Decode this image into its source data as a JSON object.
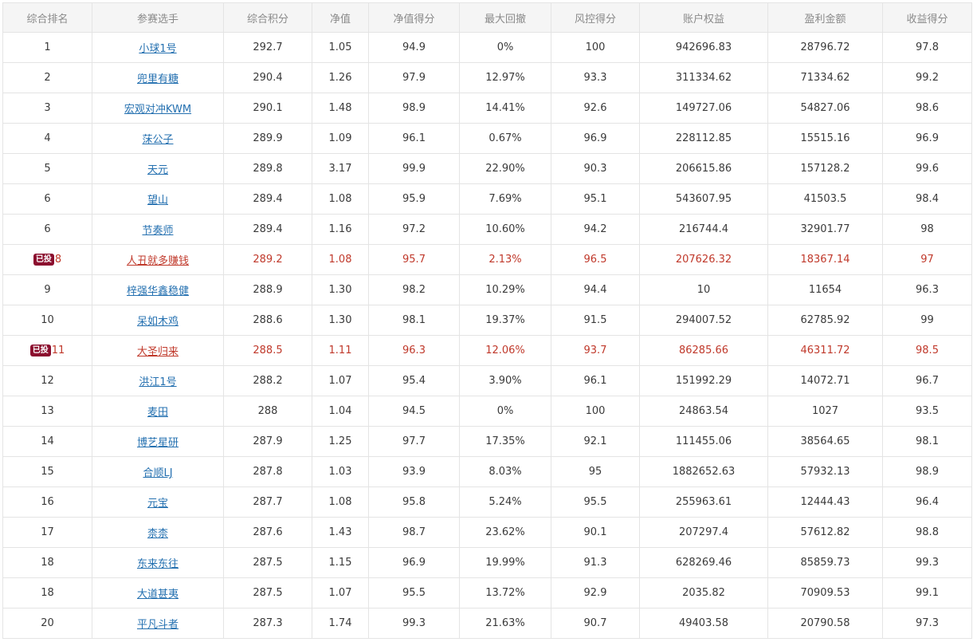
{
  "table": {
    "headers": [
      "综合排名",
      "参赛选手",
      "综合积分",
      "净值",
      "净值得分",
      "最大回撤",
      "风控得分",
      "账户权益",
      "盈利金额",
      "收益得分"
    ],
    "rows": [
      {
        "rank": "1",
        "badge": "",
        "name": "小球1号",
        "score": "292.7",
        "nav": "1.05",
        "nav_score": "94.9",
        "drawdown": "0%",
        "risk_score": "100",
        "equity": "942696.83",
        "profit": "28796.72",
        "return_score": "97.8",
        "invested": false
      },
      {
        "rank": "2",
        "badge": "",
        "name": "兜里有糖",
        "score": "290.4",
        "nav": "1.26",
        "nav_score": "97.9",
        "drawdown": "12.97%",
        "risk_score": "93.3",
        "equity": "311334.62",
        "profit": "71334.62",
        "return_score": "99.2",
        "invested": false
      },
      {
        "rank": "3",
        "badge": "",
        "name": "宏观对冲KWM",
        "score": "290.1",
        "nav": "1.48",
        "nav_score": "98.9",
        "drawdown": "14.41%",
        "risk_score": "92.6",
        "equity": "149727.06",
        "profit": "54827.06",
        "return_score": "98.6",
        "invested": false
      },
      {
        "rank": "4",
        "badge": "",
        "name": "莯公子",
        "score": "289.9",
        "nav": "1.09",
        "nav_score": "96.1",
        "drawdown": "0.67%",
        "risk_score": "96.9",
        "equity": "228112.85",
        "profit": "15515.16",
        "return_score": "96.9",
        "invested": false
      },
      {
        "rank": "5",
        "badge": "",
        "name": "天元",
        "score": "289.8",
        "nav": "3.17",
        "nav_score": "99.9",
        "drawdown": "22.90%",
        "risk_score": "90.3",
        "equity": "206615.86",
        "profit": "157128.2",
        "return_score": "99.6",
        "invested": false
      },
      {
        "rank": "6",
        "badge": "",
        "name": "望山",
        "score": "289.4",
        "nav": "1.08",
        "nav_score": "95.9",
        "drawdown": "7.69%",
        "risk_score": "95.1",
        "equity": "543607.95",
        "profit": "41503.5",
        "return_score": "98.4",
        "invested": false
      },
      {
        "rank": "6",
        "badge": "",
        "name": "节奏师",
        "score": "289.4",
        "nav": "1.16",
        "nav_score": "97.2",
        "drawdown": "10.60%",
        "risk_score": "94.2",
        "equity": "216744.4",
        "profit": "32901.77",
        "return_score": "98",
        "invested": false
      },
      {
        "rank": "8",
        "badge": "已投",
        "name": "人丑就多赚钱",
        "score": "289.2",
        "nav": "1.08",
        "nav_score": "95.7",
        "drawdown": "2.13%",
        "risk_score": "96.5",
        "equity": "207626.32",
        "profit": "18367.14",
        "return_score": "97",
        "invested": true
      },
      {
        "rank": "9",
        "badge": "",
        "name": "梓强华鑫稳健",
        "score": "288.9",
        "nav": "1.30",
        "nav_score": "98.2",
        "drawdown": "10.29%",
        "risk_score": "94.4",
        "equity": "10",
        "profit": "11654",
        "return_score": "96.3",
        "invested": false
      },
      {
        "rank": "10",
        "badge": "",
        "name": "呆如木鸡",
        "score": "288.6",
        "nav": "1.30",
        "nav_score": "98.1",
        "drawdown": "19.37%",
        "risk_score": "91.5",
        "equity": "294007.52",
        "profit": "62785.92",
        "return_score": "99",
        "invested": false
      },
      {
        "rank": "11",
        "badge": "已投",
        "name": "大圣归来",
        "score": "288.5",
        "nav": "1.11",
        "nav_score": "96.3",
        "drawdown": "12.06%",
        "risk_score": "93.7",
        "equity": "86285.66",
        "profit": "46311.72",
        "return_score": "98.5",
        "invested": true
      },
      {
        "rank": "12",
        "badge": "",
        "name": "洪江1号",
        "score": "288.2",
        "nav": "1.07",
        "nav_score": "95.4",
        "drawdown": "3.90%",
        "risk_score": "96.1",
        "equity": "151992.29",
        "profit": "14072.71",
        "return_score": "96.7",
        "invested": false
      },
      {
        "rank": "13",
        "badge": "",
        "name": "麦田",
        "score": "288",
        "nav": "1.04",
        "nav_score": "94.5",
        "drawdown": "0%",
        "risk_score": "100",
        "equity": "24863.54",
        "profit": "1027",
        "return_score": "93.5",
        "invested": false
      },
      {
        "rank": "14",
        "badge": "",
        "name": "博艺星研",
        "score": "287.9",
        "nav": "1.25",
        "nav_score": "97.7",
        "drawdown": "17.35%",
        "risk_score": "92.1",
        "equity": "111455.06",
        "profit": "38564.65",
        "return_score": "98.1",
        "invested": false
      },
      {
        "rank": "15",
        "badge": "",
        "name": "合顺LJ",
        "score": "287.8",
        "nav": "1.03",
        "nav_score": "93.9",
        "drawdown": "8.03%",
        "risk_score": "95",
        "equity": "1882652.63",
        "profit": "57932.13",
        "return_score": "98.9",
        "invested": false
      },
      {
        "rank": "16",
        "badge": "",
        "name": "元宝",
        "score": "287.7",
        "nav": "1.08",
        "nav_score": "95.8",
        "drawdown": "5.24%",
        "risk_score": "95.5",
        "equity": "255963.61",
        "profit": "12444.43",
        "return_score": "96.4",
        "invested": false
      },
      {
        "rank": "17",
        "badge": "",
        "name": "柰柰",
        "score": "287.6",
        "nav": "1.43",
        "nav_score": "98.7",
        "drawdown": "23.62%",
        "risk_score": "90.1",
        "equity": "207297.4",
        "profit": "57612.82",
        "return_score": "98.8",
        "invested": false
      },
      {
        "rank": "18",
        "badge": "",
        "name": "东来东往",
        "score": "287.5",
        "nav": "1.15",
        "nav_score": "96.9",
        "drawdown": "19.99%",
        "risk_score": "91.3",
        "equity": "628269.46",
        "profit": "85859.73",
        "return_score": "99.3",
        "invested": false
      },
      {
        "rank": "18",
        "badge": "",
        "name": "大道甚夷",
        "score": "287.5",
        "nav": "1.07",
        "nav_score": "95.5",
        "drawdown": "13.72%",
        "risk_score": "92.9",
        "equity": "2035.82",
        "profit": "70909.53",
        "return_score": "99.1",
        "invested": false
      },
      {
        "rank": "20",
        "badge": "",
        "name": "平凡斗者",
        "score": "287.3",
        "nav": "1.74",
        "nav_score": "99.3",
        "drawdown": "21.63%",
        "risk_score": "90.7",
        "equity": "49403.58",
        "profit": "20790.58",
        "return_score": "97.3",
        "invested": false
      }
    ]
  }
}
